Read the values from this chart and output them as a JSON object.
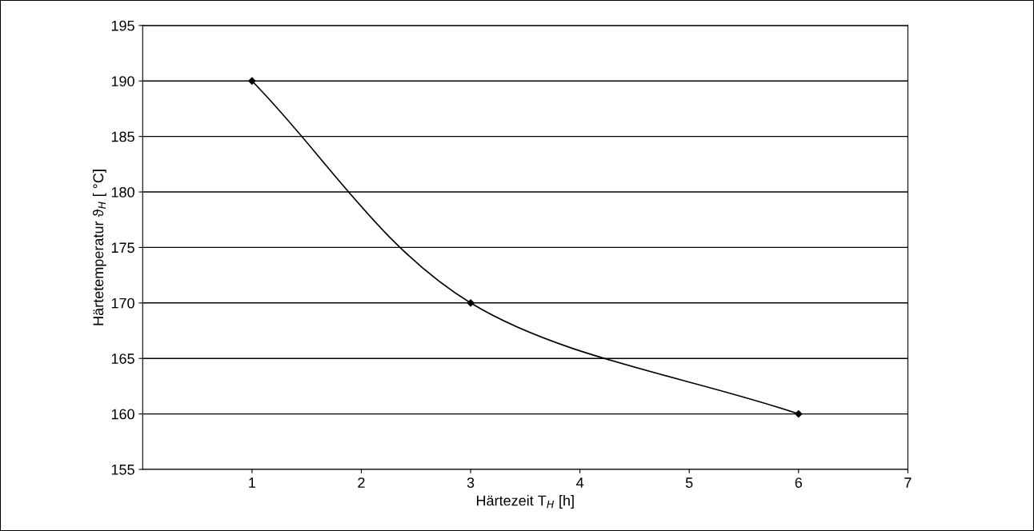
{
  "chart_data": {
    "type": "line",
    "xlabel": "Härtezeit T$_{H}$ [h]",
    "ylabel": "Härtetemperatur ϑ$_{H}$ [ °C]",
    "x": [
      1,
      3,
      6
    ],
    "series": [
      {
        "color": "#000000",
        "values": [
          190,
          170,
          160
        ]
      }
    ],
    "xlim": [
      0,
      7
    ],
    "xticks": [
      1,
      2,
      3,
      4,
      5,
      6,
      7
    ],
    "ylim": [
      155,
      195
    ],
    "yticks": [
      155,
      160,
      165,
      170,
      175,
      180,
      185,
      190,
      195
    ],
    "grid": "y",
    "marker": "diamond",
    "line_style": "solid"
  }
}
